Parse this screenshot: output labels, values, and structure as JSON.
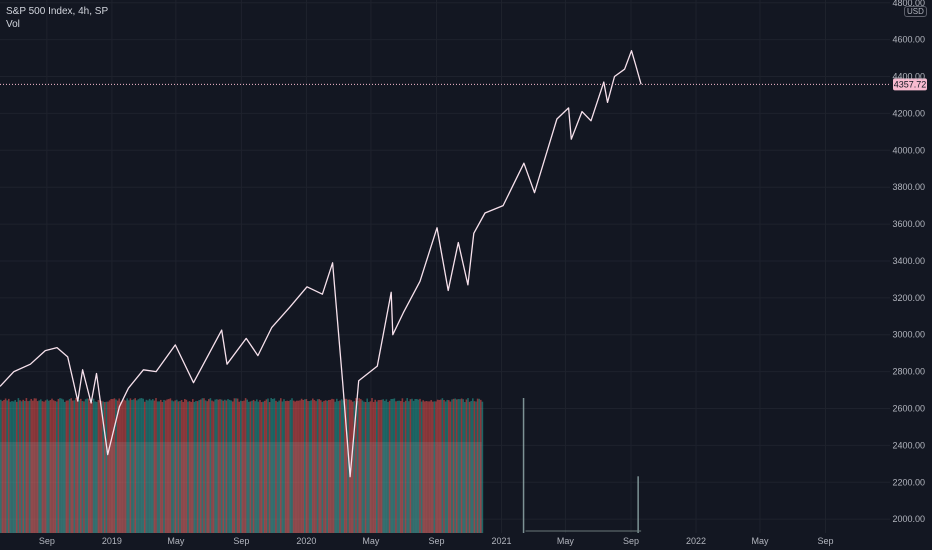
{
  "legend": {
    "symbol": "S&P 500 Index, 4h, SP",
    "volume": "Vol"
  },
  "currency_badge": "USD",
  "last_price_label": "4357.72",
  "colors": {
    "background": "#131722",
    "grid": "#1e222d",
    "price_line": "#f7e1ec",
    "last_price": "#f8bbd0",
    "vol_up": "#26a69a",
    "vol_down": "#ef5350"
  },
  "chart_data": {
    "type": "line",
    "title": "S&P 500 Index, 4h, SP",
    "xlabel": "",
    "ylabel": "",
    "y_ticks": [
      2000,
      2200,
      2400,
      2600,
      2800,
      3000,
      3200,
      3400,
      3600,
      3800,
      4000,
      4200,
      4400,
      4600,
      4800
    ],
    "y_tick_labels": [
      "2000.00",
      "2200.00",
      "2400.00",
      "2600.00",
      "2800.00",
      "3000.00",
      "3200.00",
      "3400.00",
      "3600.00",
      "3800.00",
      "4000.00",
      "4200.00",
      "4400.00",
      "4600.00",
      "4800.00"
    ],
    "ylim": [
      1925,
      4815
    ],
    "x_tick_labels": [
      "Sep",
      "2019",
      "May",
      "Sep",
      "2020",
      "May",
      "Sep",
      "2021",
      "May",
      "Sep",
      "2022",
      "May",
      "Sep"
    ],
    "x_tick_dates": [
      "2018-09-01",
      "2019-01-01",
      "2019-05-01",
      "2019-09-01",
      "2020-01-01",
      "2020-05-01",
      "2020-09-01",
      "2021-01-01",
      "2021-05-01",
      "2021-09-01",
      "2022-01-01",
      "2022-05-01",
      "2022-09-01"
    ],
    "xlim": [
      "2018-06-05",
      "2022-12-31"
    ],
    "grid": true,
    "series": [
      {
        "x": [
          "2018-06-05",
          "2018-07-01",
          "2018-08-01",
          "2018-08-29",
          "2018-09-20",
          "2018-10-10",
          "2018-10-29",
          "2018-11-07",
          "2018-11-23",
          "2018-12-03",
          "2018-12-24",
          "2019-01-15",
          "2019-02-01",
          "2019-03-01",
          "2019-03-25",
          "2019-04-30",
          "2019-06-03",
          "2019-07-26",
          "2019-08-05",
          "2019-09-10",
          "2019-10-02",
          "2019-10-28",
          "2019-12-01",
          "2020-01-02",
          "2020-01-31",
          "2020-02-19",
          "2020-03-09",
          "2020-03-23",
          "2020-04-08",
          "2020-05-13",
          "2020-06-08",
          "2020-06-11",
          "2020-07-01",
          "2020-08-01",
          "2020-09-02",
          "2020-09-23",
          "2020-10-12",
          "2020-10-30",
          "2020-11-10",
          "2020-12-01",
          "2021-01-04",
          "2021-02-12",
          "2021-03-04",
          "2021-04-15",
          "2021-05-07",
          "2021-05-12",
          "2021-06-01",
          "2021-06-18",
          "2021-07-12",
          "2021-07-19",
          "2021-08-01",
          "2021-08-20",
          "2021-09-02",
          "2021-09-10",
          "2021-09-20"
        ],
        "values": [
          2720,
          2800,
          2840,
          2914,
          2930,
          2880,
          2640,
          2810,
          2630,
          2790,
          2350,
          2610,
          2710,
          2810,
          2800,
          2945,
          2740,
          3025,
          2840,
          2980,
          2887,
          3040,
          3150,
          3260,
          3220,
          3390,
          2740,
          2230,
          2750,
          2830,
          3230,
          3000,
          3120,
          3290,
          3580,
          3240,
          3500,
          3270,
          3550,
          3660,
          3700,
          3930,
          3770,
          4170,
          4230,
          4060,
          4210,
          4160,
          4370,
          4260,
          4400,
          4440,
          4540,
          4460,
          4357.72
        ]
      }
    ],
    "last_price": 4357.72,
    "volume": {
      "type": "bar",
      "note_levels": "relative heights",
      "block_end": "2020-11-25",
      "late_spikes": [
        {
          "x": "2021-02-10",
          "value": 1.0
        },
        {
          "x": "2021-09-13",
          "value": 0.42
        }
      ]
    }
  }
}
